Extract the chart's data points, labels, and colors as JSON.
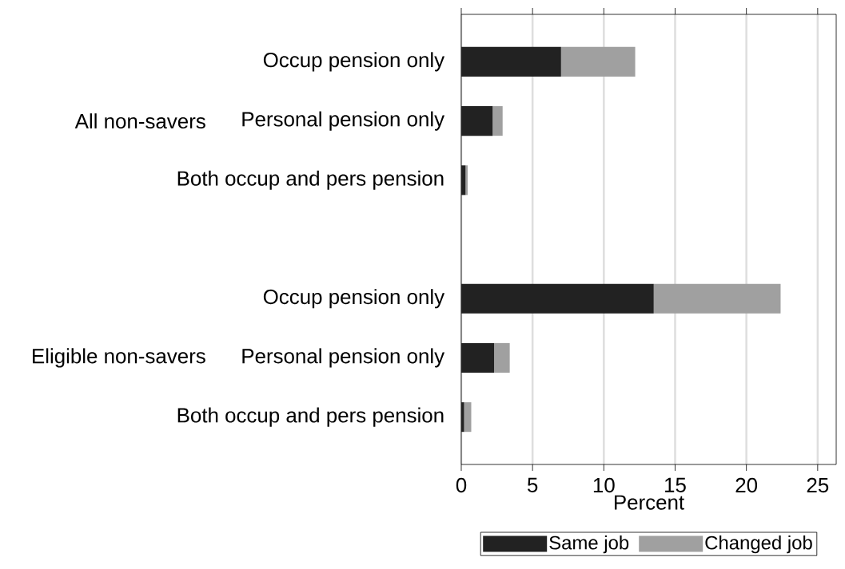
{
  "chart_data": {
    "type": "bar",
    "orientation": "horizontal",
    "stacked": true,
    "categories": [
      "Occup pension only",
      "Personal pension only",
      "Both occup and pers pension",
      null,
      "Occup pension only",
      "Personal pension only",
      "Both occup and pers pension"
    ],
    "series": [
      {
        "name": "Same job",
        "color": "#222222",
        "values": [
          7.0,
          2.2,
          0.3,
          null,
          13.5,
          2.3,
          0.2
        ]
      },
      {
        "name": "Changed job",
        "color": "#a0a0a0",
        "values": [
          5.2,
          0.7,
          0.15,
          null,
          8.9,
          1.1,
          0.5
        ]
      }
    ],
    "xlabel": "Percent",
    "xlim": [
      0,
      26.3
    ],
    "xticks": [
      0,
      5,
      10,
      15,
      20,
      25
    ],
    "grid": "x",
    "legend": "bottom",
    "annotations": [
      "All non-savers",
      "Eligible non-savers"
    ]
  }
}
